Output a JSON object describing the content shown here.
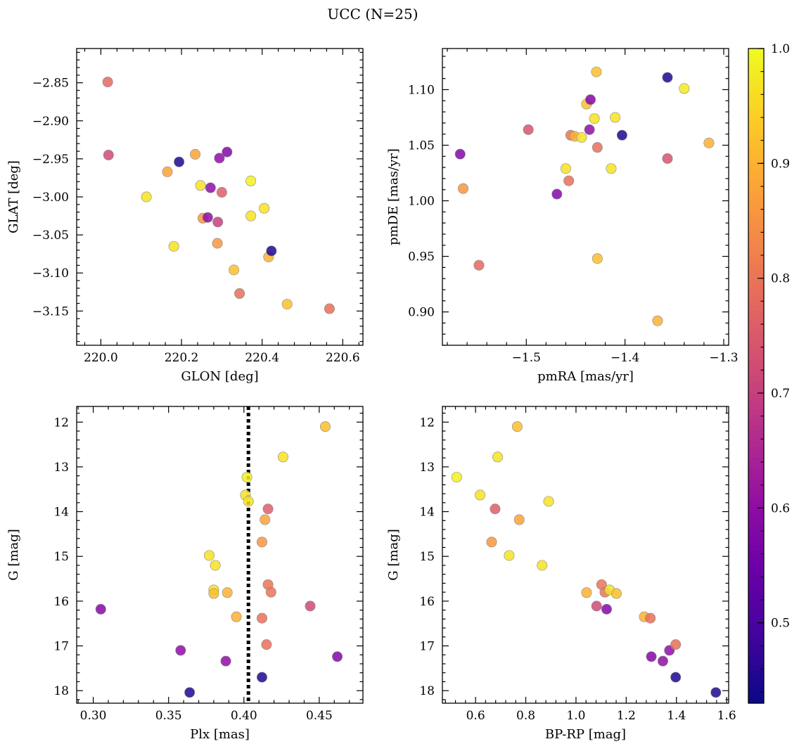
{
  "title": "UCC (N=25)",
  "colorbar": {
    "min": 0.43,
    "max": 1.0,
    "ticks": [
      "0.5",
      "0.6",
      "0.7",
      "0.8",
      "0.9",
      "1.0"
    ],
    "colormap": "plasma"
  },
  "chart_data": [
    {
      "type": "scatter",
      "xlabel": "GLON [deg]",
      "ylabel": "GLAT [deg]",
      "xlim": [
        219.94,
        220.65
      ],
      "ylim": [
        -3.195,
        -2.805
      ],
      "xticks": [
        "220.0",
        "220.2",
        "220.4",
        "220.6"
      ],
      "yticks": [
        "−2.85",
        "−2.90",
        "−2.95",
        "−3.00",
        "−3.05",
        "−3.10",
        "−3.15"
      ],
      "invert_y": false,
      "points": [
        {
          "x": 220.017,
          "y": -2.849,
          "c": 0.78
        },
        {
          "x": 220.019,
          "y": -2.945,
          "c": 0.72
        },
        {
          "x": 220.113,
          "y": -3.0,
          "c": 0.97
        },
        {
          "x": 220.165,
          "y": -2.967,
          "c": 0.88
        },
        {
          "x": 220.181,
          "y": -3.065,
          "c": 0.97
        },
        {
          "x": 220.194,
          "y": -2.954,
          "c": 0.45
        },
        {
          "x": 220.234,
          "y": -2.944,
          "c": 0.88
        },
        {
          "x": 220.247,
          "y": -2.985,
          "c": 0.97
        },
        {
          "x": 220.253,
          "y": -3.028,
          "c": 0.86
        },
        {
          "x": 220.265,
          "y": -3.027,
          "c": 0.6
        },
        {
          "x": 220.272,
          "y": -2.988,
          "c": 0.6
        },
        {
          "x": 220.29,
          "y": -3.033,
          "c": 0.7
        },
        {
          "x": 220.294,
          "y": -2.949,
          "c": 0.6
        },
        {
          "x": 220.289,
          "y": -3.061,
          "c": 0.86
        },
        {
          "x": 220.3,
          "y": -2.994,
          "c": 0.76
        },
        {
          "x": 220.313,
          "y": -2.941,
          "c": 0.58
        },
        {
          "x": 220.33,
          "y": -3.096,
          "c": 0.92
        },
        {
          "x": 220.344,
          "y": -3.127,
          "c": 0.79
        },
        {
          "x": 220.372,
          "y": -2.979,
          "c": 0.99
        },
        {
          "x": 220.372,
          "y": -3.025,
          "c": 0.97
        },
        {
          "x": 220.405,
          "y": -3.015,
          "c": 0.97
        },
        {
          "x": 220.416,
          "y": -3.079,
          "c": 0.9
        },
        {
          "x": 220.423,
          "y": -3.071,
          "c": 0.45
        },
        {
          "x": 220.462,
          "y": -3.141,
          "c": 0.92
        },
        {
          "x": 220.567,
          "y": -3.147,
          "c": 0.79
        }
      ]
    },
    {
      "type": "scatter",
      "xlabel": "pmRA [mas/yr]",
      "ylabel": "pmDE [mas/yr]",
      "xlim": [
        -1.585,
        -1.295
      ],
      "ylim": [
        0.87,
        1.137
      ],
      "xticks": [
        "−1.5",
        "−1.4",
        "−1.3"
      ],
      "yticks": [
        "0.90",
        "0.95",
        "1.00",
        "1.05",
        "1.10"
      ],
      "invert_y": false,
      "points": [
        {
          "x": -1.567,
          "y": 1.042,
          "c": 0.58
        },
        {
          "x": -1.564,
          "y": 1.011,
          "c": 0.86
        },
        {
          "x": -1.548,
          "y": 0.942,
          "c": 0.78
        },
        {
          "x": -1.498,
          "y": 1.064,
          "c": 0.74
        },
        {
          "x": -1.469,
          "y": 1.006,
          "c": 0.58
        },
        {
          "x": -1.46,
          "y": 1.029,
          "c": 0.97
        },
        {
          "x": -1.457,
          "y": 1.018,
          "c": 0.79
        },
        {
          "x": -1.455,
          "y": 1.059,
          "c": 0.8
        },
        {
          "x": -1.451,
          "y": 1.058,
          "c": 0.9
        },
        {
          "x": -1.444,
          "y": 1.057,
          "c": 0.97
        },
        {
          "x": -1.439,
          "y": 1.087,
          "c": 0.92
        },
        {
          "x": -1.436,
          "y": 1.064,
          "c": 0.6
        },
        {
          "x": -1.435,
          "y": 1.091,
          "c": 0.58
        },
        {
          "x": -1.431,
          "y": 1.074,
          "c": 0.97
        },
        {
          "x": -1.429,
          "y": 1.116,
          "c": 0.92
        },
        {
          "x": -1.428,
          "y": 0.948,
          "c": 0.92
        },
        {
          "x": -1.428,
          "y": 1.048,
          "c": 0.79
        },
        {
          "x": -1.414,
          "y": 1.029,
          "c": 0.97
        },
        {
          "x": -1.41,
          "y": 1.075,
          "c": 0.97
        },
        {
          "x": -1.403,
          "y": 1.059,
          "c": 0.45
        },
        {
          "x": -1.367,
          "y": 0.892,
          "c": 0.9
        },
        {
          "x": -1.357,
          "y": 1.111,
          "c": 0.45
        },
        {
          "x": -1.357,
          "y": 1.038,
          "c": 0.74
        },
        {
          "x": -1.34,
          "y": 1.101,
          "c": 0.98
        },
        {
          "x": -1.315,
          "y": 1.052,
          "c": 0.9
        }
      ]
    },
    {
      "type": "scatter",
      "xlabel": "Plx [mas]",
      "ylabel": "G [mag]",
      "xlim": [
        0.289,
        0.479
      ],
      "ylim": [
        18.28,
        11.65
      ],
      "xticks": [
        "0.30",
        "0.35",
        "0.40",
        "0.45"
      ],
      "yticks": [
        "12",
        "13",
        "14",
        "15",
        "16",
        "17",
        "18"
      ],
      "invert_y": true,
      "vline": 0.403,
      "points": [
        {
          "x": 0.305,
          "y": 16.18,
          "c": 0.58
        },
        {
          "x": 0.358,
          "y": 17.1,
          "c": 0.6
        },
        {
          "x": 0.364,
          "y": 18.04,
          "c": 0.45
        },
        {
          "x": 0.377,
          "y": 14.98,
          "c": 0.97
        },
        {
          "x": 0.38,
          "y": 15.75,
          "c": 0.97
        },
        {
          "x": 0.38,
          "y": 15.83,
          "c": 0.92
        },
        {
          "x": 0.381,
          "y": 15.2,
          "c": 0.97
        },
        {
          "x": 0.388,
          "y": 17.34,
          "c": 0.6
        },
        {
          "x": 0.389,
          "y": 15.81,
          "c": 0.9
        },
        {
          "x": 0.395,
          "y": 16.35,
          "c": 0.9
        },
        {
          "x": 0.401,
          "y": 13.63,
          "c": 0.97
        },
        {
          "x": 0.402,
          "y": 13.23,
          "c": 0.99
        },
        {
          "x": 0.403,
          "y": 13.77,
          "c": 0.97
        },
        {
          "x": 0.412,
          "y": 14.68,
          "c": 0.86
        },
        {
          "x": 0.412,
          "y": 16.38,
          "c": 0.79
        },
        {
          "x": 0.412,
          "y": 17.7,
          "c": 0.45
        },
        {
          "x": 0.414,
          "y": 14.18,
          "c": 0.88
        },
        {
          "x": 0.415,
          "y": 16.97,
          "c": 0.79
        },
        {
          "x": 0.416,
          "y": 13.94,
          "c": 0.76
        },
        {
          "x": 0.416,
          "y": 15.63,
          "c": 0.8
        },
        {
          "x": 0.418,
          "y": 15.8,
          "c": 0.8
        },
        {
          "x": 0.426,
          "y": 12.78,
          "c": 0.97
        },
        {
          "x": 0.444,
          "y": 16.11,
          "c": 0.72
        },
        {
          "x": 0.454,
          "y": 12.1,
          "c": 0.92
        },
        {
          "x": 0.462,
          "y": 17.24,
          "c": 0.58
        }
      ]
    },
    {
      "type": "scatter",
      "xlabel": "BP-RP [mag]",
      "ylabel": "G [mag]",
      "xlim": [
        0.468,
        1.608
      ],
      "ylim": [
        18.28,
        11.65
      ],
      "xticks": [
        "0.6",
        "0.8",
        "1.0",
        "1.2",
        "1.4",
        "1.6"
      ],
      "yticks": [
        "12",
        "13",
        "14",
        "15",
        "16",
        "17",
        "18"
      ],
      "invert_y": true,
      "points": [
        {
          "x": 0.525,
          "y": 13.23,
          "c": 0.99
        },
        {
          "x": 0.618,
          "y": 13.63,
          "c": 0.97
        },
        {
          "x": 0.664,
          "y": 14.68,
          "c": 0.86
        },
        {
          "x": 0.678,
          "y": 13.94,
          "c": 0.76
        },
        {
          "x": 0.688,
          "y": 12.78,
          "c": 0.97
        },
        {
          "x": 0.734,
          "y": 14.98,
          "c": 0.97
        },
        {
          "x": 0.766,
          "y": 12.1,
          "c": 0.92
        },
        {
          "x": 0.774,
          "y": 14.18,
          "c": 0.88
        },
        {
          "x": 0.865,
          "y": 15.2,
          "c": 0.97
        },
        {
          "x": 0.891,
          "y": 13.77,
          "c": 0.97
        },
        {
          "x": 1.042,
          "y": 15.81,
          "c": 0.9
        },
        {
          "x": 1.082,
          "y": 16.11,
          "c": 0.72
        },
        {
          "x": 1.102,
          "y": 15.63,
          "c": 0.8
        },
        {
          "x": 1.115,
          "y": 15.8,
          "c": 0.8
        },
        {
          "x": 1.122,
          "y": 16.18,
          "c": 0.58
        },
        {
          "x": 1.134,
          "y": 15.75,
          "c": 0.97
        },
        {
          "x": 1.161,
          "y": 15.83,
          "c": 0.92
        },
        {
          "x": 1.272,
          "y": 16.35,
          "c": 0.9
        },
        {
          "x": 1.296,
          "y": 16.38,
          "c": 0.79
        },
        {
          "x": 1.3,
          "y": 17.24,
          "c": 0.58
        },
        {
          "x": 1.346,
          "y": 17.34,
          "c": 0.6
        },
        {
          "x": 1.372,
          "y": 17.1,
          "c": 0.6
        },
        {
          "x": 1.397,
          "y": 16.97,
          "c": 0.79
        },
        {
          "x": 1.397,
          "y": 17.7,
          "c": 0.45
        },
        {
          "x": 1.557,
          "y": 18.04,
          "c": 0.45
        }
      ]
    }
  ]
}
